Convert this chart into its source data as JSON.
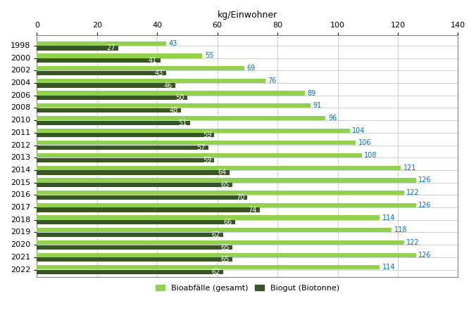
{
  "years": [
    "1998",
    "2000",
    "2002",
    "2004",
    "2006",
    "2008",
    "2010",
    "2011",
    "2012",
    "2013",
    "2014",
    "2015",
    "2016",
    "2017",
    "2018",
    "2019",
    "2020",
    "2021",
    "2022"
  ],
  "bioabfall": [
    43,
    55,
    69,
    76,
    89,
    91,
    96,
    104,
    106,
    108,
    121,
    126,
    122,
    126,
    114,
    118,
    122,
    126,
    114
  ],
  "biogut": [
    27,
    41,
    43,
    46,
    50,
    48,
    51,
    59,
    57,
    59,
    64,
    65,
    70,
    74,
    66,
    62,
    65,
    65,
    62
  ],
  "color_bioabfall": "#92D050",
  "color_biogut": "#375623",
  "xlabel": "kg/Einwohner",
  "xlim": [
    0,
    140
  ],
  "xticks": [
    0,
    20,
    40,
    60,
    80,
    100,
    120,
    140
  ],
  "legend_bioabfall": "Bioabfälle (gesamt)",
  "legend_biogut": "Biogut (Biotonne)",
  "label_color_bioabfall": "#0070C0",
  "label_color_biogut": "#FFFFFF",
  "bar_height": 0.35,
  "background_color": "#FFFFFF",
  "grid_color": "#BFBFBF"
}
